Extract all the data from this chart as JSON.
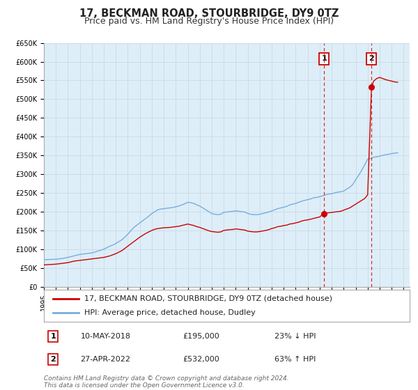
{
  "title": "17, BECKMAN ROAD, STOURBRIDGE, DY9 0TZ",
  "subtitle": "Price paid vs. HM Land Registry's House Price Index (HPI)",
  "ylim": [
    0,
    650000
  ],
  "xlim_start": 1995.0,
  "xlim_end": 2025.5,
  "yticks": [
    0,
    50000,
    100000,
    150000,
    200000,
    250000,
    300000,
    350000,
    400000,
    450000,
    500000,
    550000,
    600000,
    650000
  ],
  "ytick_labels": [
    "£0",
    "£50K",
    "£100K",
    "£150K",
    "£200K",
    "£250K",
    "£300K",
    "£350K",
    "£400K",
    "£450K",
    "£500K",
    "£550K",
    "£600K",
    "£650K"
  ],
  "xticks": [
    1995,
    1996,
    1997,
    1998,
    1999,
    2000,
    2001,
    2002,
    2003,
    2004,
    2005,
    2006,
    2007,
    2008,
    2009,
    2010,
    2011,
    2012,
    2013,
    2014,
    2015,
    2016,
    2017,
    2018,
    2019,
    2020,
    2021,
    2022,
    2023,
    2024,
    2025
  ],
  "red_line_color": "#cc0000",
  "blue_line_color": "#7aaddb",
  "grid_color": "#ccdde8",
  "background_color": "#ffffff",
  "plot_bg_color": "#ddeef8",
  "sale1_x": 2018.36,
  "sale1_y": 195000,
  "sale2_x": 2022.32,
  "sale2_y": 532000,
  "vline_color": "#dd2222",
  "marker_color": "#cc0000",
  "legend_label1": "17, BECKMAN ROAD, STOURBRIDGE, DY9 0TZ (detached house)",
  "legend_label2": "HPI: Average price, detached house, Dudley",
  "table_row1": [
    "1",
    "10-MAY-2018",
    "£195,000",
    "23% ↓ HPI"
  ],
  "table_row2": [
    "2",
    "27-APR-2022",
    "£532,000",
    "63% ↑ HPI"
  ],
  "footer": "Contains HM Land Registry data © Crown copyright and database right 2024.\nThis data is licensed under the Open Government Licence v3.0.",
  "title_fontsize": 10.5,
  "subtitle_fontsize": 9,
  "tick_fontsize": 7,
  "legend_fontsize": 8,
  "table_fontsize": 8,
  "footer_fontsize": 6.5,
  "hpi_years": [
    1995.0,
    1995.25,
    1995.5,
    1995.75,
    1996.0,
    1996.25,
    1996.5,
    1996.75,
    1997.0,
    1997.25,
    1997.5,
    1997.75,
    1998.0,
    1998.25,
    1998.5,
    1998.75,
    1999.0,
    1999.25,
    1999.5,
    1999.75,
    2000.0,
    2000.25,
    2000.5,
    2000.75,
    2001.0,
    2001.25,
    2001.5,
    2001.75,
    2002.0,
    2002.25,
    2002.5,
    2002.75,
    2003.0,
    2003.25,
    2003.5,
    2003.75,
    2004.0,
    2004.25,
    2004.5,
    2004.75,
    2005.0,
    2005.25,
    2005.5,
    2005.75,
    2006.0,
    2006.25,
    2006.5,
    2006.75,
    2007.0,
    2007.25,
    2007.5,
    2007.75,
    2008.0,
    2008.25,
    2008.5,
    2008.75,
    2009.0,
    2009.25,
    2009.5,
    2009.75,
    2010.0,
    2010.25,
    2010.5,
    2010.75,
    2011.0,
    2011.25,
    2011.5,
    2011.75,
    2012.0,
    2012.25,
    2012.5,
    2012.75,
    2013.0,
    2013.25,
    2013.5,
    2013.75,
    2014.0,
    2014.25,
    2014.5,
    2014.75,
    2015.0,
    2015.25,
    2015.5,
    2015.75,
    2016.0,
    2016.25,
    2016.5,
    2016.75,
    2017.0,
    2017.25,
    2017.5,
    2017.75,
    2018.0,
    2018.25,
    2018.5,
    2018.75,
    2019.0,
    2019.25,
    2019.5,
    2019.75,
    2020.0,
    2020.25,
    2020.5,
    2020.75,
    2021.0,
    2021.25,
    2021.5,
    2021.75,
    2022.0,
    2022.25,
    2022.5,
    2022.75,
    2023.0,
    2023.25,
    2023.5,
    2023.75,
    2024.0,
    2024.25,
    2024.5
  ],
  "hpi_vals": [
    72000,
    72200,
    72500,
    72800,
    73000,
    74000,
    75000,
    76500,
    78000,
    80000,
    82000,
    84000,
    86000,
    87000,
    88000,
    89000,
    90000,
    92000,
    95000,
    97000,
    100000,
    104000,
    108000,
    111000,
    115000,
    120000,
    125000,
    132000,
    140000,
    149000,
    158000,
    164000,
    170000,
    176000,
    182000,
    188000,
    195000,
    200000,
    205000,
    207000,
    208000,
    209000,
    210000,
    211000,
    213000,
    215000,
    218000,
    221000,
    225000,
    224000,
    222000,
    218000,
    215000,
    210000,
    205000,
    200000,
    195000,
    193000,
    192000,
    193000,
    198000,
    199000,
    200000,
    201000,
    202000,
    201000,
    200000,
    199000,
    195000,
    193000,
    192000,
    192000,
    193000,
    195000,
    197000,
    199000,
    202000,
    205000,
    208000,
    210000,
    212000,
    214000,
    218000,
    220000,
    222000,
    225000,
    228000,
    230000,
    232000,
    234000,
    237000,
    238000,
    240000,
    242000,
    245000,
    247000,
    248000,
    250000,
    252000,
    253000,
    255000,
    260000,
    265000,
    272000,
    285000,
    297000,
    310000,
    325000,
    340000,
    342000,
    345000,
    346000,
    348000,
    350000,
    352000,
    353000,
    355000,
    356000,
    357000
  ],
  "red_years": [
    1995.0,
    1995.25,
    1995.5,
    1995.75,
    1996.0,
    1996.25,
    1996.5,
    1996.75,
    1997.0,
    1997.25,
    1997.5,
    1997.75,
    1998.0,
    1998.25,
    1998.5,
    1998.75,
    1999.0,
    1999.25,
    1999.5,
    1999.75,
    2000.0,
    2000.25,
    2000.5,
    2000.75,
    2001.0,
    2001.25,
    2001.5,
    2001.75,
    2002.0,
    2002.25,
    2002.5,
    2002.75,
    2003.0,
    2003.25,
    2003.5,
    2003.75,
    2004.0,
    2004.25,
    2004.5,
    2004.75,
    2005.0,
    2005.25,
    2005.5,
    2005.75,
    2006.0,
    2006.25,
    2006.5,
    2006.75,
    2007.0,
    2007.25,
    2007.5,
    2007.75,
    2008.0,
    2008.25,
    2008.5,
    2008.75,
    2009.0,
    2009.25,
    2009.5,
    2009.75,
    2010.0,
    2010.25,
    2010.5,
    2010.75,
    2011.0,
    2011.25,
    2011.5,
    2011.75,
    2012.0,
    2012.25,
    2012.5,
    2012.75,
    2013.0,
    2013.25,
    2013.5,
    2013.75,
    2014.0,
    2014.25,
    2014.5,
    2014.75,
    2015.0,
    2015.25,
    2015.5,
    2015.75,
    2016.0,
    2016.25,
    2016.5,
    2016.75,
    2017.0,
    2017.25,
    2017.5,
    2017.75,
    2018.0,
    2018.36,
    2018.5,
    2018.75,
    2019.0,
    2019.25,
    2019.5,
    2019.75,
    2020.0,
    2020.25,
    2020.5,
    2020.75,
    2021.0,
    2021.25,
    2021.5,
    2021.75,
    2022.0,
    2022.32,
    2022.5,
    2022.75,
    2023.0,
    2023.25,
    2023.5,
    2023.75,
    2024.0,
    2024.25,
    2024.5
  ],
  "red_vals": [
    58000,
    58500,
    59000,
    59500,
    60000,
    61000,
    62000,
    63000,
    64000,
    66000,
    68000,
    69000,
    70000,
    71000,
    72000,
    73000,
    74000,
    75000,
    76000,
    77000,
    78000,
    80000,
    82000,
    85000,
    88000,
    92000,
    96000,
    102000,
    108000,
    114000,
    120000,
    126000,
    132000,
    137000,
    142000,
    146000,
    150000,
    153000,
    155000,
    156000,
    157000,
    157500,
    158000,
    159000,
    160000,
    161000,
    163000,
    165000,
    167000,
    165000,
    163000,
    160000,
    158000,
    155000,
    152000,
    149000,
    147000,
    146000,
    145000,
    146000,
    150000,
    151000,
    152000,
    152500,
    154000,
    153000,
    152000,
    151000,
    148000,
    147000,
    146000,
    146000,
    147000,
    148500,
    150000,
    152000,
    155000,
    157000,
    160000,
    161000,
    163000,
    164000,
    167000,
    168000,
    170000,
    172000,
    175000,
    177000,
    178000,
    180000,
    182000,
    184000,
    186000,
    195000,
    196000,
    197000,
    198000,
    199000,
    200000,
    201000,
    204000,
    207000,
    210000,
    215000,
    220000,
    225000,
    230000,
    235000,
    245000,
    532000,
    548000,
    555000,
    558000,
    555000,
    552000,
    550000,
    548000,
    546000,
    545000
  ]
}
